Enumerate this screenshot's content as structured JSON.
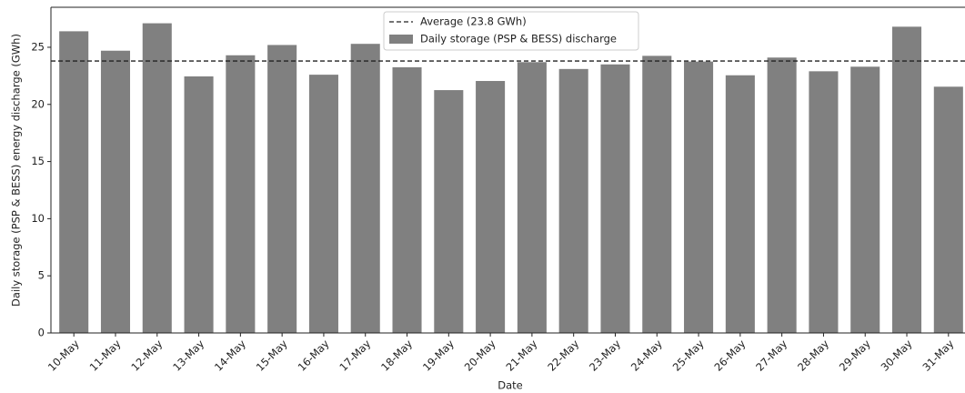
{
  "chart_data": {
    "type": "bar",
    "xlabel": "Date",
    "ylabel": "Daily storage (PSP & BESS) energy discharge (GWh)",
    "categories": [
      "10-May",
      "11-May",
      "12-May",
      "13-May",
      "14-May",
      "15-May",
      "16-May",
      "17-May",
      "18-May",
      "19-May",
      "20-May",
      "21-May",
      "22-May",
      "23-May",
      "24-May",
      "25-May",
      "26-May",
      "27-May",
      "28-May",
      "29-May",
      "30-May",
      "31-May"
    ],
    "series": [
      {
        "name": "Daily storage (PSP & BESS) discharge",
        "color": "#808080",
        "values": [
          26.4,
          24.7,
          27.1,
          22.45,
          24.3,
          25.2,
          22.6,
          25.3,
          23.25,
          21.25,
          22.05,
          23.7,
          23.1,
          23.5,
          24.25,
          23.75,
          22.55,
          24.1,
          22.9,
          23.3,
          26.8,
          21.55
        ]
      }
    ],
    "reference_line": {
      "name": "Average (23.8 GWh)",
      "value": 23.8,
      "color": "#222222",
      "style": "dashed"
    },
    "ylim": [
      0,
      28.5
    ],
    "yticks": [
      0,
      5,
      10,
      15,
      20,
      25
    ],
    "grid": false,
    "legend_position": "top"
  }
}
